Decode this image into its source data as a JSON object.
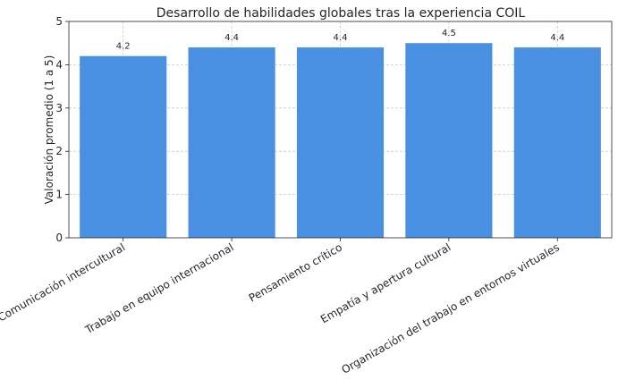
{
  "chart_data": {
    "type": "bar",
    "title": "Desarrollo de habilidades globales tras la experiencia COIL",
    "xlabel": "",
    "ylabel": "Valoración promedio (1 a 5)",
    "categories": [
      "Comunicación intercultural",
      "Trabajo en equipo internacional",
      "Pensamiento crítico",
      "Empatía y apertura cultural",
      "Organización del trabajo en entornos virtuales"
    ],
    "values": [
      4.2,
      4.4,
      4.4,
      4.5,
      4.4
    ],
    "value_labels": [
      "4.2",
      "4.4",
      "4.4",
      "4.5",
      "4.4"
    ],
    "yticks": [
      "0",
      "1",
      "2",
      "3",
      "4",
      "5"
    ],
    "ylim": [
      0,
      5
    ],
    "grid": true,
    "legend": "none",
    "bar_color": "#4a90e2"
  }
}
